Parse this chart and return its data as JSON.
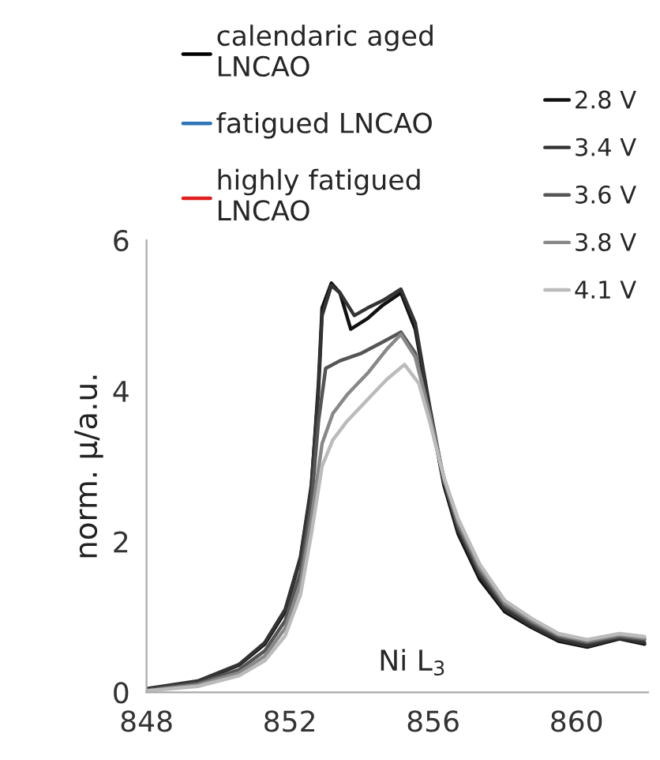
{
  "chart_data": {
    "type": "line",
    "ylabel": "norm. μ/a.u.",
    "annotations": [
      "Ni L$_{3}$"
    ],
    "xlim": [
      848,
      862
    ],
    "xticks": [
      848,
      852,
      856,
      860
    ],
    "ylim": [
      0,
      6
    ],
    "yticks": [
      0,
      2,
      4,
      6
    ],
    "grid": false,
    "legend": "top right",
    "marker": "none",
    "line_style": "solid",
    "series": [
      {
        "name": "calendaric aged LNCAO",
        "color": "#000000"
      },
      {
        "name": "fatigued LNCAO",
        "color": "#2e75b6"
      },
      {
        "name": "highly fatigued LNCAO",
        "color": "#e02020"
      },
      {
        "name": "2.8 V",
        "color": "#111111",
        "x": [
          848,
          849.43,
          850.58,
          851.3,
          851.87,
          852.3,
          852.6,
          852.8,
          852.9,
          853.16,
          853.4,
          853.7,
          854.17,
          854.6,
          855.1,
          855.5,
          855.9,
          856.3,
          856.7,
          857.3,
          858.0,
          858.75,
          859.5,
          860.3,
          861.2,
          861.9
        ],
        "values": [
          0.04,
          0.14,
          0.36,
          0.64,
          1.07,
          1.79,
          2.7,
          4.1,
          5.1,
          5.43,
          5.3,
          4.82,
          4.96,
          5.14,
          5.3,
          4.82,
          3.75,
          2.75,
          2.1,
          1.5,
          1.07,
          0.86,
          0.68,
          0.6,
          0.71,
          0.64
        ]
      },
      {
        "name": "3.4 V",
        "color": "#333333",
        "x": [
          848,
          849.43,
          850.58,
          851.3,
          851.87,
          852.3,
          852.6,
          852.8,
          852.9,
          853.16,
          853.4,
          853.8,
          854.17,
          854.6,
          855.1,
          855.5,
          855.9,
          856.3,
          856.7,
          857.3,
          858.0,
          858.75,
          859.5,
          860.3,
          861.2,
          861.9
        ],
        "values": [
          0.05,
          0.15,
          0.37,
          0.66,
          1.1,
          1.8,
          2.75,
          4.0,
          5.0,
          5.4,
          5.3,
          5.0,
          5.1,
          5.2,
          5.35,
          4.9,
          3.8,
          2.8,
          2.15,
          1.55,
          1.1,
          0.88,
          0.7,
          0.62,
          0.72,
          0.66
        ]
      },
      {
        "name": "3.6 V",
        "color": "#555555",
        "x": [
          848,
          849.43,
          850.58,
          851.3,
          851.87,
          852.3,
          852.6,
          852.8,
          853.0,
          853.4,
          854.0,
          854.6,
          855.1,
          855.5,
          855.9,
          856.3,
          856.7,
          857.3,
          858.0,
          858.75,
          859.5,
          860.3,
          861.2,
          861.9
        ],
        "values": [
          0.03,
          0.12,
          0.3,
          0.55,
          0.95,
          1.6,
          2.5,
          3.6,
          4.3,
          4.4,
          4.5,
          4.65,
          4.78,
          4.5,
          3.7,
          2.8,
          2.2,
          1.6,
          1.15,
          0.92,
          0.74,
          0.66,
          0.74,
          0.7
        ]
      },
      {
        "name": "3.8 V",
        "color": "#888888",
        "x": [
          848,
          849.43,
          850.58,
          851.3,
          851.87,
          852.3,
          852.6,
          852.9,
          853.2,
          853.6,
          854.2,
          854.7,
          855.1,
          855.5,
          855.9,
          856.3,
          856.7,
          857.3,
          858.0,
          858.75,
          859.5,
          860.3,
          861.2,
          861.9
        ],
        "values": [
          0.02,
          0.1,
          0.26,
          0.48,
          0.85,
          1.45,
          2.3,
          3.3,
          3.7,
          3.95,
          4.25,
          4.55,
          4.75,
          4.45,
          3.7,
          2.85,
          2.25,
          1.65,
          1.18,
          0.95,
          0.76,
          0.68,
          0.76,
          0.72
        ]
      },
      {
        "name": "4.1 V",
        "color": "#bbbbbb",
        "x": [
          848,
          849.43,
          850.58,
          851.3,
          851.87,
          852.3,
          852.6,
          852.9,
          853.2,
          853.6,
          854.2,
          854.7,
          855.2,
          855.6,
          855.9,
          856.3,
          856.7,
          857.3,
          858.0,
          858.75,
          859.5,
          860.3,
          861.2,
          861.9
        ],
        "values": [
          0.02,
          0.08,
          0.22,
          0.42,
          0.75,
          1.3,
          2.1,
          3.0,
          3.35,
          3.6,
          3.9,
          4.15,
          4.35,
          4.1,
          3.6,
          2.85,
          2.3,
          1.7,
          1.22,
          0.98,
          0.78,
          0.7,
          0.78,
          0.74
        ]
      }
    ]
  }
}
